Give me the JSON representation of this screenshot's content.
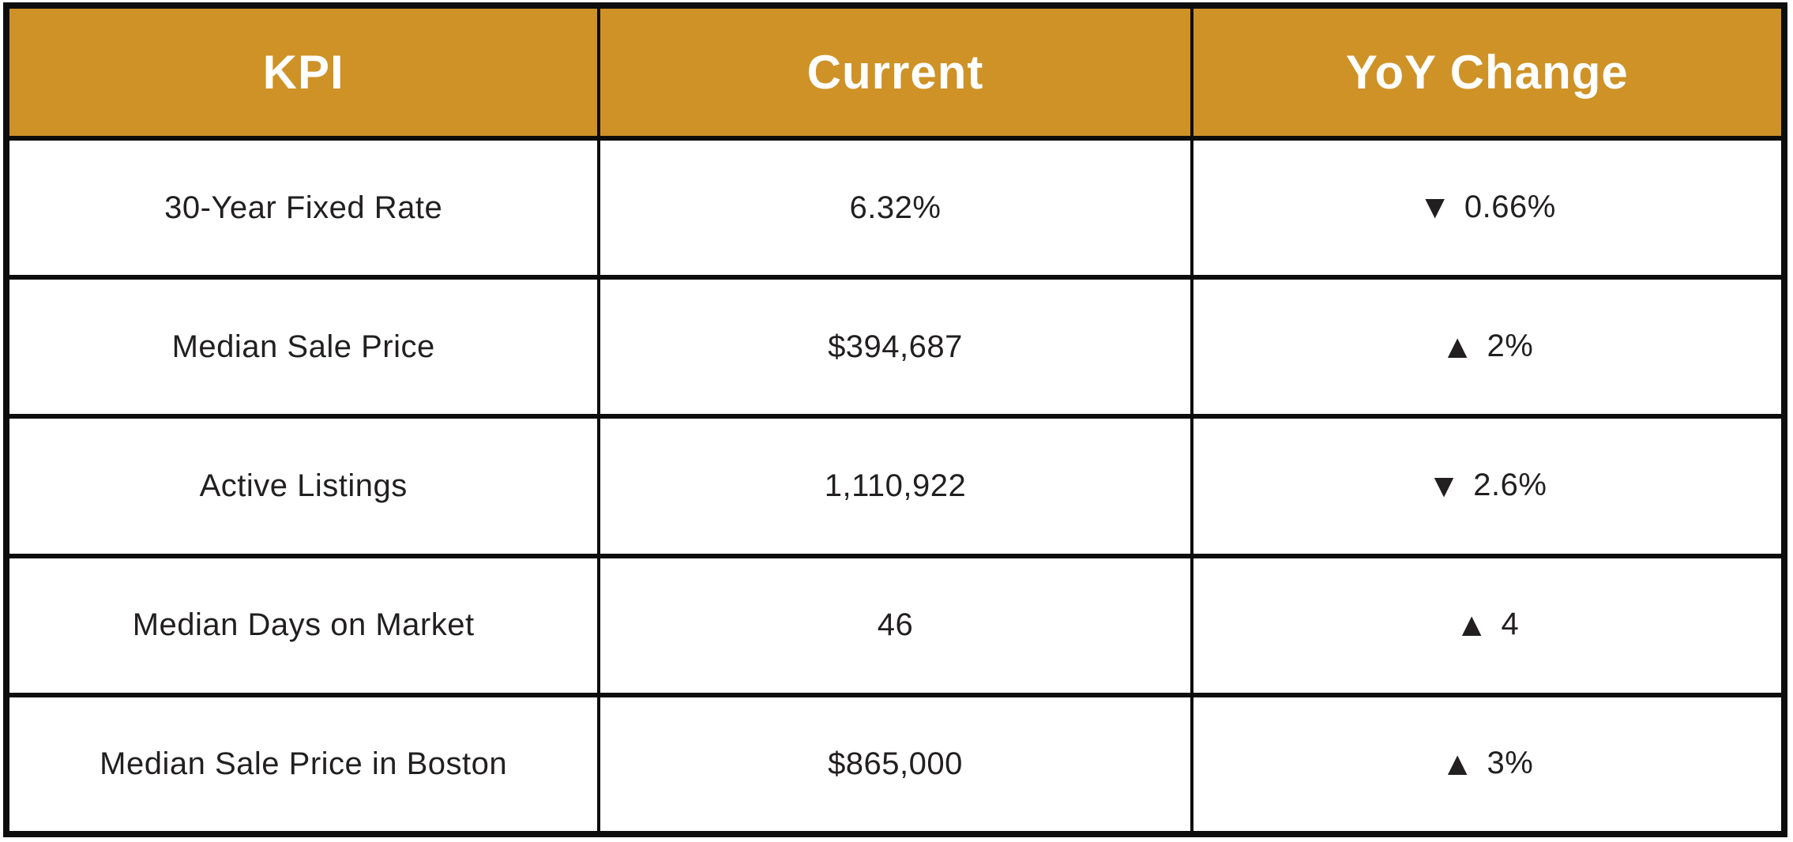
{
  "colors": {
    "header_background": "#ce9227",
    "header_text": "#ffffff",
    "body_text": "#221f20",
    "grid_border": "#0d0d0d",
    "page_background": "#ffffff"
  },
  "chart_data": {
    "type": "table",
    "columns": [
      "KPI",
      "Current",
      "YoY Change"
    ],
    "rows": [
      {
        "kpi": "30-Year Fixed Rate",
        "current": "6.32%",
        "yoy_direction": "down",
        "yoy_arrow": "▼",
        "yoy_value": "0.66%"
      },
      {
        "kpi": "Median Sale Price",
        "current": "$394,687",
        "yoy_direction": "up",
        "yoy_arrow": "▲",
        "yoy_value": "2%"
      },
      {
        "kpi": "Active Listings",
        "current": "1,110,922",
        "yoy_direction": "down",
        "yoy_arrow": "▼",
        "yoy_value": "2.6%"
      },
      {
        "kpi": "Median Days on Market",
        "current": "46",
        "yoy_direction": "up",
        "yoy_arrow": "▲",
        "yoy_value": "4"
      },
      {
        "kpi": "Median Sale Price in Boston",
        "current": "$865,000",
        "yoy_direction": "up",
        "yoy_arrow": "▲",
        "yoy_value": "3%"
      }
    ]
  }
}
